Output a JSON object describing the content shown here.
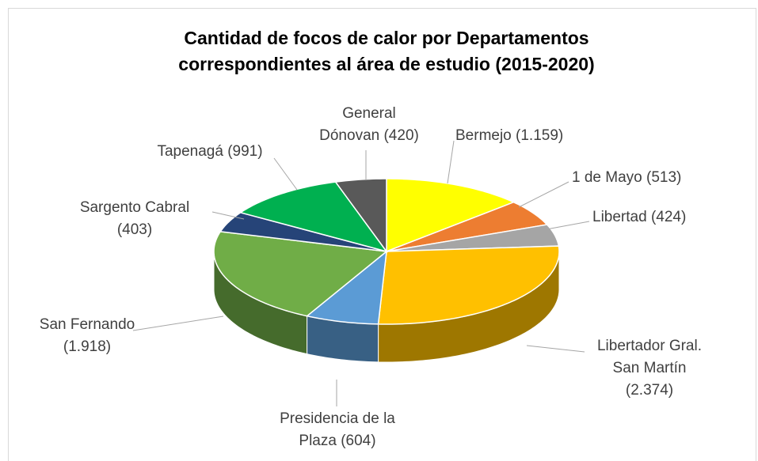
{
  "chart_data": {
    "type": "pie3d",
    "title": "Cantidad de focos de calor por Departamentos correspondientes al área de estudio (2015-2020)",
    "categories": [
      "Bermejo",
      "1 de Mayo",
      "Libertad",
      "Libertador Gral. San Martín",
      "Presidencia de la Plaza",
      "San Fernando",
      "Sargento Cabral",
      "Tapenagá",
      "General Dónovan"
    ],
    "values": [
      1159,
      513,
      424,
      2374,
      604,
      1918,
      403,
      991,
      420
    ],
    "value_labels": [
      "(1.159)",
      "(513)",
      "(424)",
      "(2.374)",
      "(604)",
      "(1.918)",
      "(403)",
      "(991)",
      "(420)"
    ],
    "colors": [
      "#ffff00",
      "#ed7d31",
      "#a5a5a5",
      "#ffc000",
      "#5b9bd5",
      "#70ad47",
      "#264478",
      "#00b050",
      "#595959"
    ]
  }
}
